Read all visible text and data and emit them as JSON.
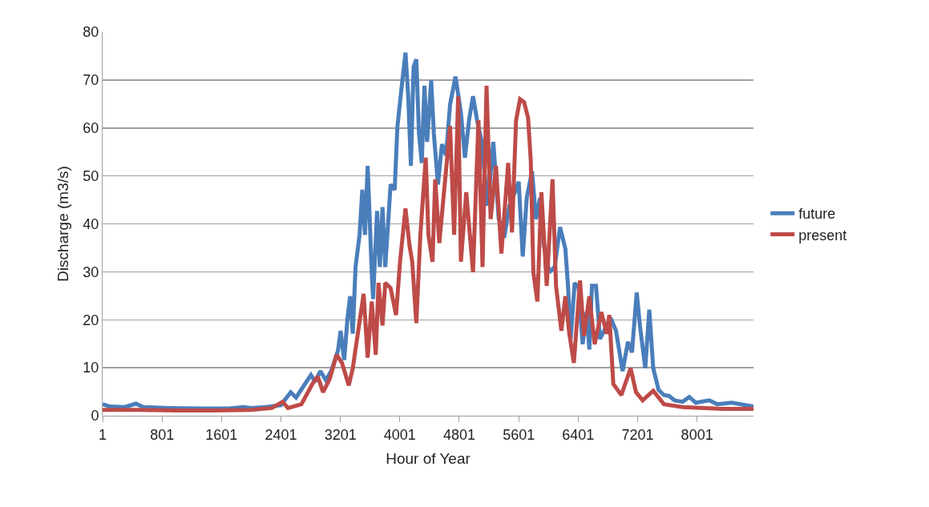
{
  "chart_data": {
    "type": "line",
    "xlabel": "Hour of Year",
    "ylabel": "Discharge (m3/s)",
    "xlim": [
      1,
      8760
    ],
    "xticks": [
      1,
      801,
      1601,
      2401,
      3201,
      4001,
      4801,
      5601,
      6401,
      7201,
      8001
    ],
    "ylim": [
      0,
      80
    ],
    "yticks": [
      0,
      10,
      20,
      30,
      40,
      50,
      60,
      70,
      80
    ],
    "grid": "y",
    "legend": "right",
    "marker": "none",
    "line_style": "solid",
    "series": [
      {
        "name": "future",
        "color": "#4a7ebb",
        "x": [
          1,
          100,
          300,
          450,
          550,
          900,
          1300,
          1700,
          1900,
          2000,
          2200,
          2400,
          2532,
          2605,
          2805,
          2859,
          2932,
          3005,
          3077,
          3168,
          3204,
          3252,
          3296,
          3332,
          3368,
          3405,
          3459,
          3496,
          3532,
          3568,
          3623,
          3641,
          3695,
          3732,
          3768,
          3805,
          3877,
          3932,
          3968,
          4023,
          4077,
          4114,
          4150,
          4186,
          4223,
          4259,
          4296,
          4332,
          4368,
          4423,
          4459,
          4514,
          4568,
          4623,
          4677,
          4750,
          4823,
          4877,
          4932,
          4986,
          5041,
          5095,
          5186,
          5259,
          5332,
          5405,
          5477,
          5550,
          5601,
          5655,
          5709,
          5780,
          5834,
          5888,
          5942,
          6013,
          6085,
          6157,
          6229,
          6264,
          6300,
          6354,
          6408,
          6461,
          6515,
          6551,
          6587,
          6641,
          6695,
          6766,
          6838,
          6910,
          6999,
          7071,
          7125,
          7189,
          7232,
          7304,
          7358,
          7411,
          7483,
          7555,
          7627,
          7698,
          7806,
          7896,
          7985,
          8164,
          8272,
          8469,
          8760
        ],
        "values": [
          2.4,
          1.9,
          1.8,
          2.5,
          1.8,
          1.6,
          1.5,
          1.5,
          1.8,
          1.6,
          1.8,
          2.2,
          4.9,
          3.8,
          8.5,
          7.1,
          9.3,
          7.4,
          9.3,
          13.5,
          17.7,
          11.6,
          20.2,
          24.9,
          17.1,
          31,
          37.7,
          47.1,
          37.7,
          52.1,
          29.9,
          24.3,
          42.7,
          31,
          43.5,
          31,
          48.2,
          47.1,
          60.2,
          68.2,
          75.7,
          66.6,
          52.1,
          72.7,
          74.3,
          58.8,
          52.7,
          68.8,
          57.1,
          69.9,
          58.8,
          48.2,
          56.6,
          54.3,
          64.9,
          70.7,
          63.2,
          53.8,
          61.6,
          66.6,
          61.6,
          57.7,
          43.8,
          57.1,
          41,
          37.1,
          43.8,
          46.6,
          48.8,
          33.2,
          45.4,
          51,
          41,
          45.4,
          35.4,
          29.9,
          31,
          39.3,
          34.8,
          27.1,
          16,
          27.7,
          26.6,
          14.9,
          21.6,
          13.8,
          27.1,
          27.1,
          16,
          18.2,
          20.4,
          17.7,
          9.3,
          15.4,
          13.2,
          25.7,
          18.8,
          9.9,
          22.1,
          9.9,
          5.4,
          4.3,
          4.1,
          3.2,
          2.9,
          3.9,
          2.7,
          3.2,
          2.4,
          2.7,
          1.9
        ]
      },
      {
        "name": "present",
        "color": "#be4b48",
        "x": [
          1,
          500,
          1000,
          1500,
          2000,
          2278,
          2423,
          2496,
          2677,
          2823,
          2896,
          2968,
          3059,
          3150,
          3223,
          3314,
          3368,
          3441,
          3514,
          3568,
          3623,
          3677,
          3714,
          3768,
          3805,
          3877,
          3950,
          4004,
          4077,
          4132,
          4168,
          4223,
          4277,
          4350,
          4386,
          4441,
          4477,
          4532,
          4605,
          4677,
          4732,
          4786,
          4823,
          4895,
          4986,
          5059,
          5114,
          5168,
          5223,
          5295,
          5368,
          5459,
          5511,
          5565,
          5619,
          5673,
          5727,
          5763,
          5798,
          5852,
          5906,
          5978,
          6056,
          6103,
          6175,
          6229,
          6282,
          6343,
          6426,
          6479,
          6551,
          6623,
          6713,
          6784,
          6820,
          6874,
          6982,
          7107,
          7179,
          7269,
          7411,
          7555,
          7806,
          8344,
          8760
        ],
        "values": [
          1.2,
          1.2,
          1.1,
          1.1,
          1.2,
          1.6,
          2.9,
          1.6,
          2.4,
          6.6,
          8.2,
          4.9,
          7.7,
          12.7,
          11,
          6.3,
          9.9,
          17.7,
          25.4,
          12.1,
          23.8,
          12.7,
          27.7,
          18.8,
          27.7,
          26.6,
          21,
          32.1,
          43.2,
          35.4,
          32.1,
          19.3,
          37.7,
          53.8,
          37.7,
          32.1,
          49.3,
          36,
          48.2,
          60.4,
          37.7,
          66.6,
          32.1,
          46.6,
          29.9,
          61.6,
          31,
          68.8,
          41,
          52.1,
          33.8,
          52.7,
          38.2,
          61.6,
          66,
          65.4,
          62.1,
          53.2,
          29.9,
          23.8,
          46.6,
          27.1,
          49.3,
          27.1,
          17.7,
          24.9,
          17.1,
          11,
          28.2,
          16.6,
          24.9,
          14.9,
          21.6,
          17.1,
          21,
          6.6,
          4.3,
          9.9,
          4.9,
          3.2,
          5.2,
          2.4,
          1.8,
          1.4,
          1.4
        ]
      }
    ]
  }
}
